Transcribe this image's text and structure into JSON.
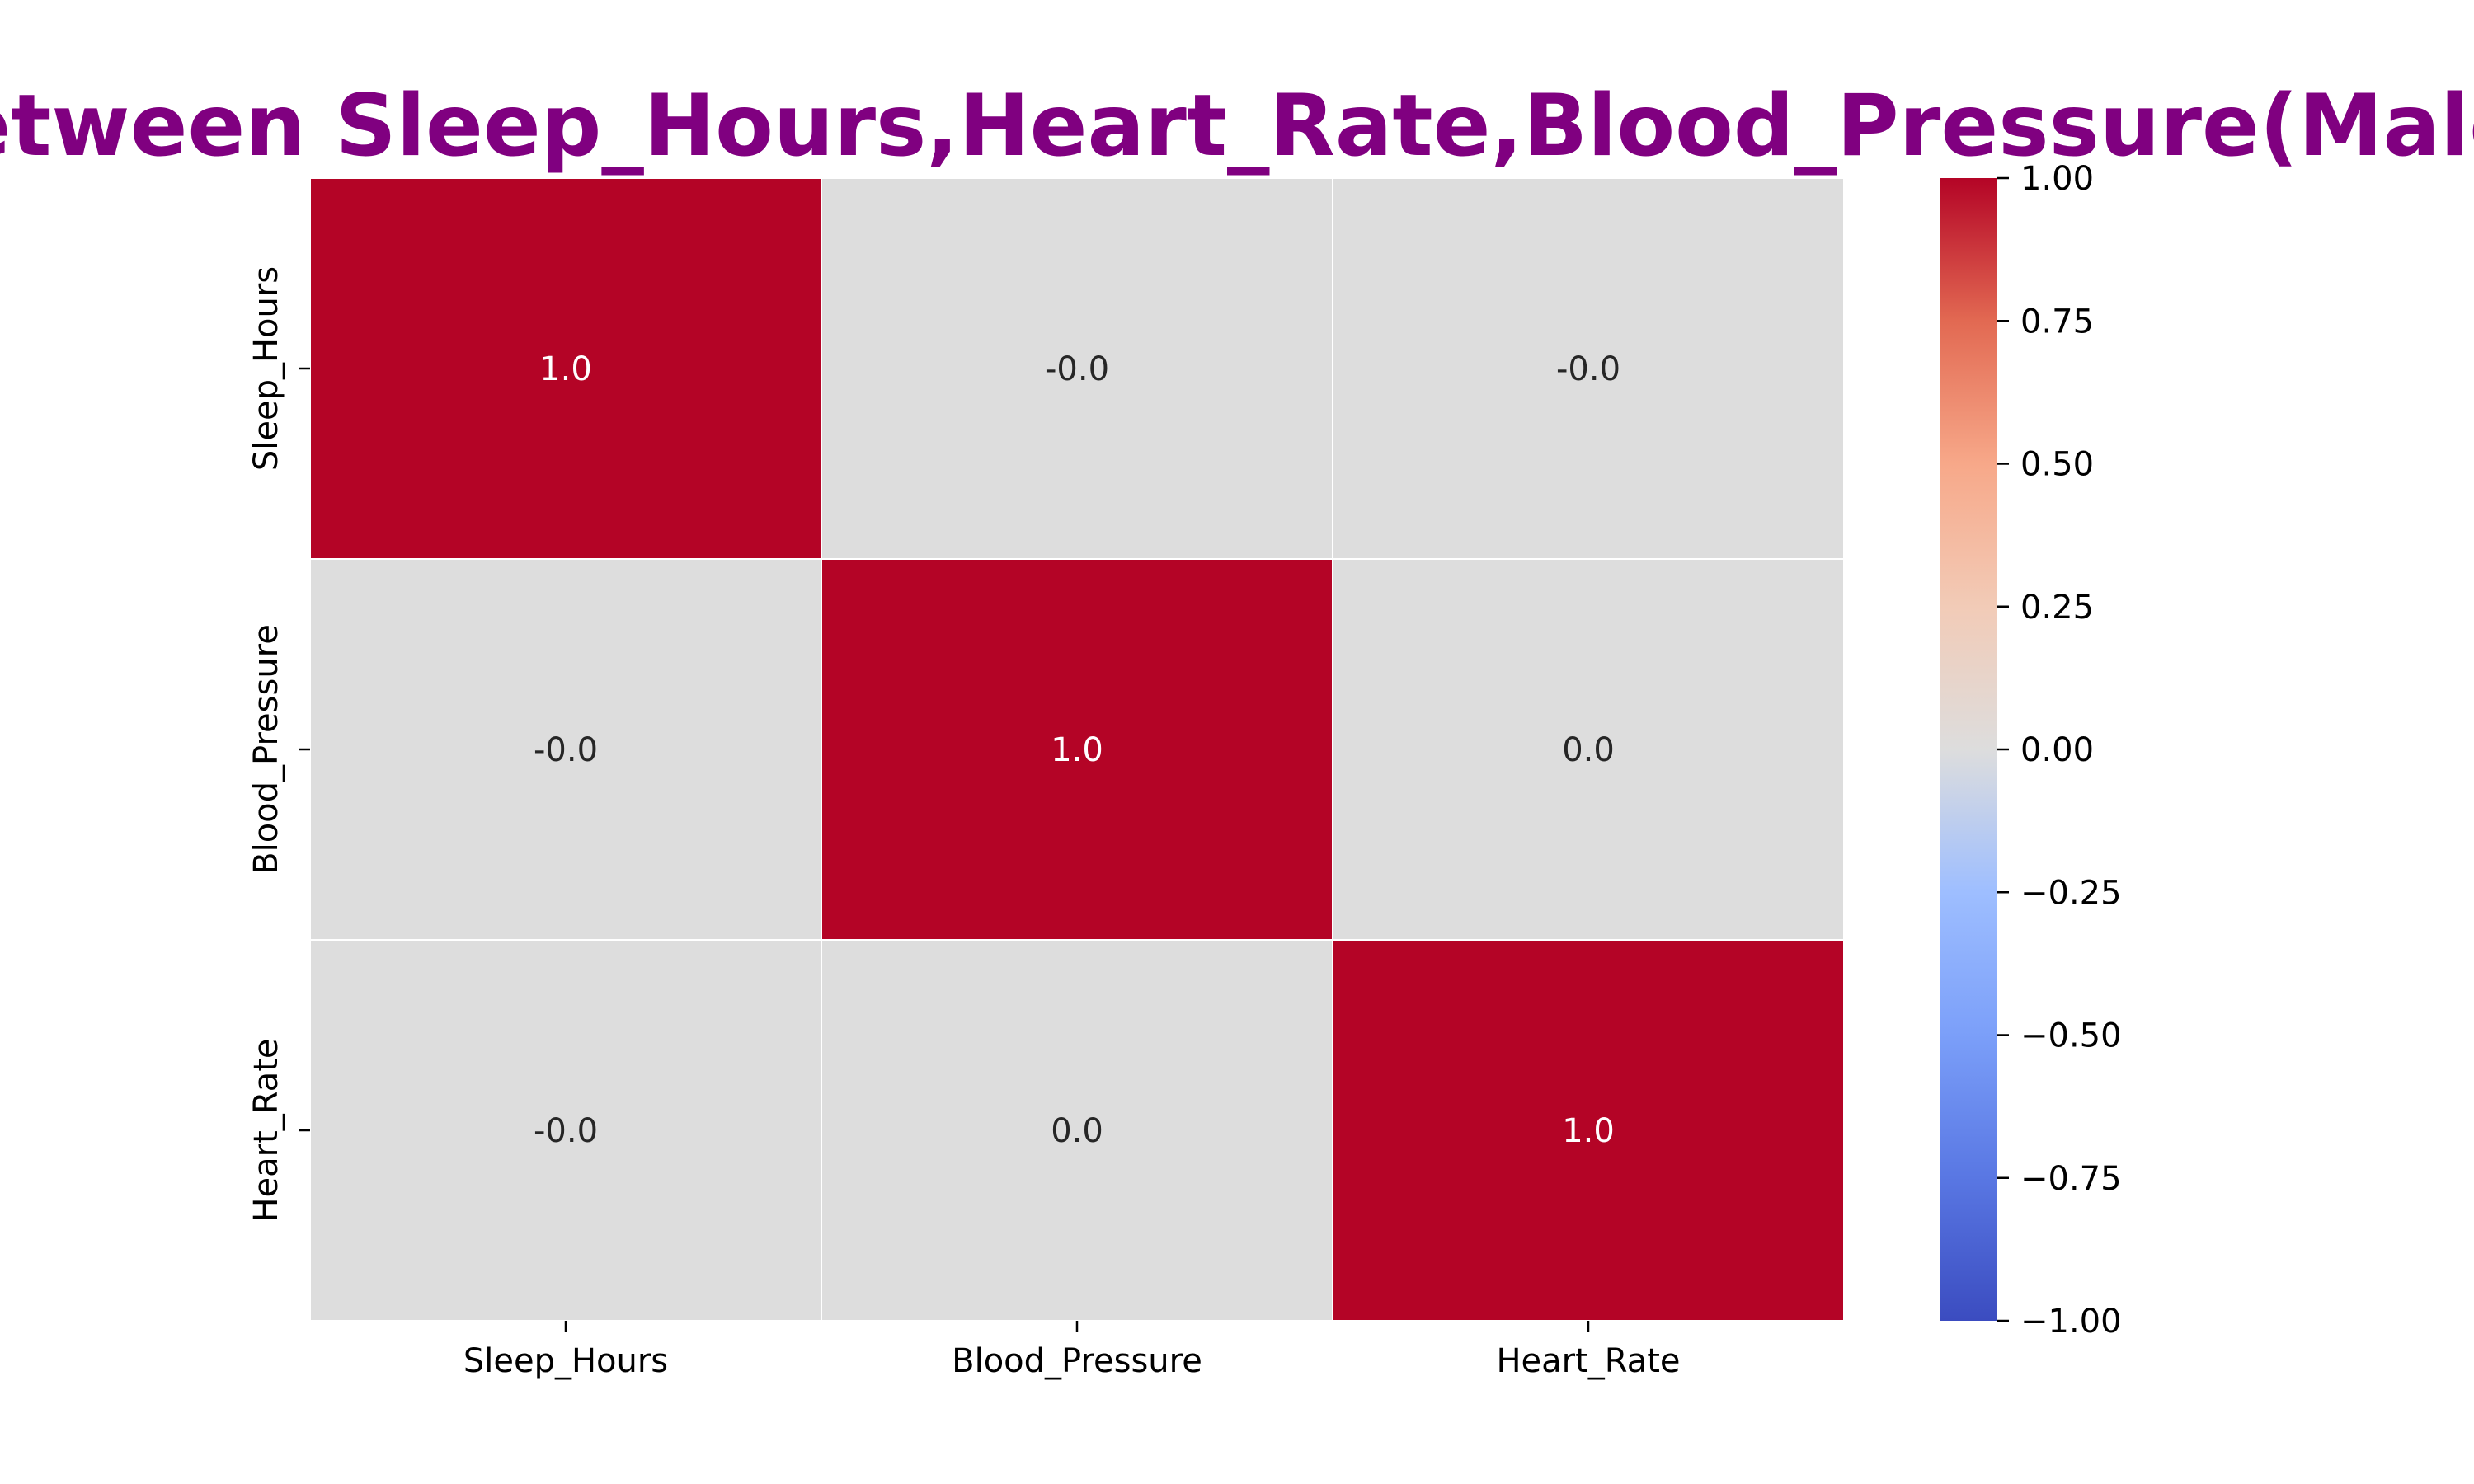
{
  "chart_data": {
    "type": "heatmap",
    "title": "Correlation between Sleep_Hours,Heart_Rate,Blood_Pressure(Male and Female)",
    "title_visible": "Hours,Heart_Rate,Blood_Pressure(Male and Female)",
    "title_color": "#800080",
    "x_labels": [
      "Sleep_Hours",
      "Blood_Pressure",
      "Heart_Rate"
    ],
    "y_labels": [
      "Sleep_Hours",
      "Blood_Pressure",
      "Heart_Rate"
    ],
    "values": [
      [
        1.0,
        -0.0,
        -0.0
      ],
      [
        -0.0,
        1.0,
        0.0
      ],
      [
        -0.0,
        0.0,
        1.0
      ]
    ],
    "annotations": [
      [
        "1.0",
        "-0.0",
        "-0.0"
      ],
      [
        "-0.0",
        "1.0",
        "0.0"
      ],
      [
        "-0.0",
        "0.0",
        "1.0"
      ]
    ],
    "colormap": "coolwarm",
    "vmin": -1.0,
    "vmax": 1.0,
    "colorbar_ticks": [
      "1.00",
      "0.75",
      "0.50",
      "0.25",
      "0.00",
      "−0.25",
      "−0.50",
      "−0.75",
      "−1.00"
    ],
    "colorbar_tick_values": [
      1.0,
      0.75,
      0.5,
      0.25,
      0.0,
      -0.25,
      -0.5,
      -0.75,
      -1.0
    ],
    "colorbar_placement": "right",
    "colors": {
      "high": "#b40426",
      "mid": "#dddddd",
      "low": "#3b4cc0"
    }
  }
}
